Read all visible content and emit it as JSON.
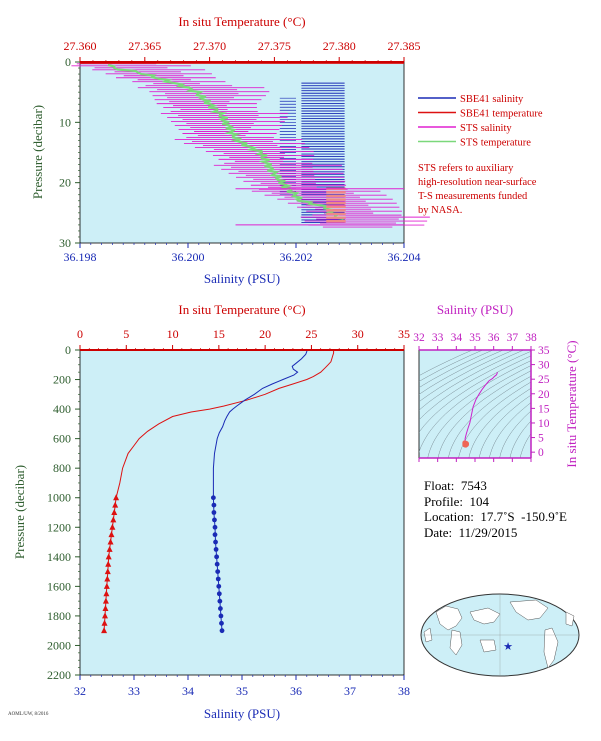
{
  "colors": {
    "temperature": "#dd1111",
    "salinity": "#1a2bb5",
    "sts_salinity": "#e020d0",
    "sts_temperature": "#7bd87b",
    "sts_ts": "#cc22cc",
    "plot_bg": "#cdeff7",
    "axis_blue": "#1a2bb5",
    "axis_green": "#2e5d2e",
    "axis_magenta": "#c020c0"
  },
  "chart_data": [
    {
      "type": "line",
      "id": "near-surface",
      "x_top_label": "In situ Temperature (°C)",
      "x_top_ticks": [
        "27.360",
        "27.365",
        "27.370",
        "27.375",
        "27.380",
        "27.385"
      ],
      "x_top_lim": [
        27.36,
        27.385
      ],
      "x_bottom_label": "Salinity (PSU)",
      "x_bottom_ticks": [
        "36.198",
        "36.200",
        "36.202",
        "36.204"
      ],
      "x_bottom_lim": [
        36.198,
        36.204
      ],
      "ylabel": "Pressure (decibar)",
      "y_ticks": [
        "0",
        "10",
        "20",
        "30"
      ],
      "ylim": [
        30,
        0
      ],
      "legend": [
        {
          "label": "SBE41 salinity",
          "color": "#1a2bb5"
        },
        {
          "label": "SBE41 temperature",
          "color": "#dd1111"
        },
        {
          "label": "STS salinity",
          "color": "#e020d0"
        },
        {
          "label": "STS temperature",
          "color": "#7bd87b"
        }
      ],
      "note": [
        "STS refers to auxiliary",
        "high-resolution near-surface",
        "T-S measurements funded",
        "by NASA."
      ],
      "series": [
        {
          "name": "STS salinity",
          "axis": "bottom",
          "p": [
            0.3,
            0.8,
            1.5,
            2.5,
            3.5,
            5,
            7,
            9,
            11,
            13,
            15,
            17,
            19,
            21,
            23,
            25,
            27
          ],
          "v": [
            36.1984,
            36.1986,
            36.199,
            36.1992,
            36.1996,
            36.2,
            36.2,
            36.2003,
            36.2004,
            36.2005,
            36.201,
            36.2012,
            36.2015,
            36.2018,
            36.2024,
            36.2028,
            36.2029
          ]
        },
        {
          "name": "STS temperature",
          "axis": "top",
          "p": [
            0.5,
            1,
            1.5,
            2,
            3,
            4,
            5,
            6,
            7,
            8,
            9,
            10,
            11,
            12,
            13,
            14,
            15,
            16,
            17,
            18,
            19,
            20,
            21,
            22,
            23,
            24,
            25,
            26
          ],
          "v": [
            27.3625,
            27.3625,
            27.364,
            27.365,
            27.3665,
            27.368,
            27.369,
            27.3695,
            27.37,
            27.3705,
            27.371,
            27.3712,
            27.3716,
            27.3718,
            27.3722,
            27.373,
            27.374,
            27.3742,
            27.3745,
            27.3748,
            27.3752,
            27.3756,
            27.376,
            27.3766,
            27.377,
            27.379,
            27.3795,
            27.38
          ]
        },
        {
          "name": "SBE41 salinity",
          "axis": "bottom",
          "p": [
            3.5,
            27
          ],
          "v": [
            36.2026,
            36.2026
          ]
        },
        {
          "name": "SBE41 temperature",
          "axis": "top",
          "p": [
            0.3,
            27
          ],
          "v": [
            27.383,
            27.383
          ]
        }
      ]
    },
    {
      "type": "line",
      "id": "full-profile",
      "x_top_label": "In situ Temperature (°C)",
      "x_top_ticks": [
        "0",
        "5",
        "10",
        "15",
        "20",
        "25",
        "30",
        "35"
      ],
      "x_top_lim": [
        0,
        35
      ],
      "x_bottom_label": "Salinity (PSU)",
      "x_bottom_ticks": [
        "32",
        "33",
        "34",
        "35",
        "36",
        "37",
        "38"
      ],
      "x_bottom_lim": [
        32,
        38
      ],
      "ylabel": "Pressure (decibar)",
      "y_ticks": [
        "0",
        "200",
        "400",
        "600",
        "800",
        "1000",
        "1200",
        "1400",
        "1600",
        "1800",
        "2000",
        "2200"
      ],
      "ylim": [
        2200,
        0
      ],
      "series": [
        {
          "name": "Temperature",
          "axis": "top",
          "p": [
            0,
            5,
            20,
            40,
            60,
            80,
            100,
            120,
            150,
            180,
            200,
            230,
            260,
            300,
            340,
            380,
            400,
            420,
            450,
            500,
            550,
            600,
            650,
            700,
            800,
            900,
            1000,
            1100,
            1200,
            1300,
            1400,
            1500,
            1600,
            1700,
            1800,
            1900
          ],
          "v": [
            27.4,
            27.4,
            27.4,
            27.3,
            27.2,
            27.1,
            26.8,
            26.5,
            26.0,
            25.2,
            24.5,
            23.0,
            21.5,
            20.0,
            18.0,
            15.5,
            14.0,
            12.0,
            10.0,
            8.5,
            7.3,
            6.4,
            5.8,
            5.2,
            4.6,
            4.3,
            3.9,
            3.7,
            3.5,
            3.3,
            3.1,
            3.0,
            2.9,
            2.8,
            2.7,
            2.6
          ]
        },
        {
          "name": "Salinity",
          "axis": "bottom",
          "p": [
            0,
            10,
            30,
            60,
            90,
            110,
            130,
            150,
            170,
            200,
            230,
            260,
            300,
            340,
            380,
            400,
            420,
            450,
            480,
            520,
            560,
            600,
            700,
            800,
            900,
            1000,
            1100,
            1200,
            1300,
            1400,
            1500,
            1600,
            1700,
            1800,
            1900
          ],
          "v": [
            36.2,
            36.2,
            36.18,
            36.1,
            36.0,
            35.93,
            35.95,
            36.03,
            35.96,
            35.76,
            35.56,
            35.38,
            35.23,
            35.05,
            34.9,
            34.83,
            34.77,
            34.72,
            34.68,
            34.64,
            34.58,
            34.54,
            34.49,
            34.47,
            34.47,
            34.47,
            34.48,
            34.5,
            34.51,
            34.53,
            34.55,
            34.57,
            34.59,
            34.61,
            34.63
          ]
        },
        {
          "name": "Temperature bottle markers",
          "axis": "top",
          "p": [
            1000,
            1050,
            1100,
            1150,
            1200,
            1250,
            1300,
            1350,
            1400,
            1450,
            1500,
            1550,
            1600,
            1650,
            1700,
            1750,
            1800,
            1850,
            1900
          ],
          "v": [
            3.9,
            3.8,
            3.7,
            3.6,
            3.5,
            3.4,
            3.3,
            3.2,
            3.1,
            3.05,
            3.0,
            2.95,
            2.9,
            2.85,
            2.8,
            2.75,
            2.7,
            2.65,
            2.6
          ]
        },
        {
          "name": "Salinity bottle markers",
          "axis": "bottom",
          "p": [
            1000,
            1050,
            1100,
            1150,
            1200,
            1250,
            1300,
            1350,
            1400,
            1450,
            1500,
            1550,
            1600,
            1650,
            1700,
            1750,
            1800,
            1850,
            1900
          ],
          "v": [
            34.47,
            34.48,
            34.48,
            34.49,
            34.5,
            34.5,
            34.51,
            34.52,
            34.53,
            34.54,
            34.55,
            34.56,
            34.57,
            34.58,
            34.59,
            34.6,
            34.61,
            34.62,
            34.63
          ]
        }
      ]
    },
    {
      "type": "scatter",
      "id": "ts-diagram",
      "x_top_label": "Salinity (PSU)",
      "x_ticks": [
        "32",
        "33",
        "34",
        "35",
        "36",
        "37",
        "38"
      ],
      "xlim": [
        32,
        38
      ],
      "ylabel": "In situ Temperature (°C)",
      "y_ticks": [
        "0",
        "5",
        "10",
        "15",
        "20",
        "25",
        "30",
        "35"
      ],
      "ylim": [
        -2,
        35
      ],
      "series": [
        {
          "name": "T-S",
          "s": [
            36.2,
            36.2,
            36.15,
            36.05,
            35.93,
            35.76,
            35.56,
            35.38,
            35.23,
            35.05,
            34.9,
            34.72,
            34.64,
            34.54,
            34.49,
            34.47,
            34.47,
            34.5,
            34.55,
            34.6,
            34.63
          ],
          "t": [
            27.4,
            27.3,
            26.5,
            26.0,
            25.2,
            24.5,
            23.0,
            21.5,
            20.0,
            18.0,
            15.5,
            10.0,
            8.5,
            6.4,
            5.2,
            4.6,
            3.9,
            3.5,
            3.0,
            2.8,
            2.6
          ]
        }
      ]
    }
  ],
  "float_info": {
    "float": "Float:  7543",
    "profile": "Profile:  104",
    "location": "Location:  17.7˚S  -150.9˚E",
    "date": "Date:  11/29/2015"
  },
  "footer_text": "AOML/UW, 8/2016"
}
